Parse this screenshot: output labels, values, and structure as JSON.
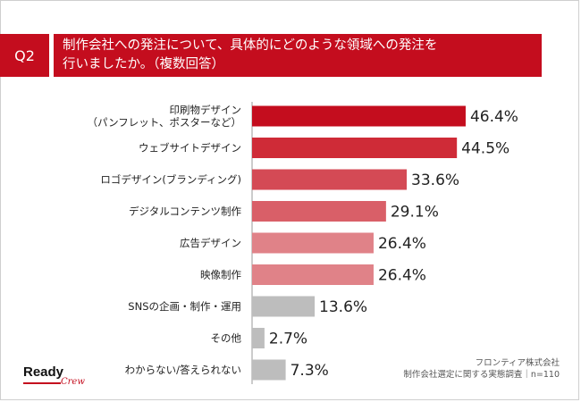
{
  "question": {
    "badge": "Q2",
    "line1": "制作会社への発注について、具体的にどのような領域への発注を",
    "line2": "行いましたか。（複数回答）"
  },
  "chart_data": {
    "type": "bar",
    "orientation": "horizontal",
    "unit": "%",
    "categories": [
      [
        "印刷物デザイン",
        "（パンフレット、ポスターなど）"
      ],
      [
        "ウェブサイトデザイン"
      ],
      [
        "ロゴデザイン(ブランディング)"
      ],
      [
        "デジタルコンテンツ制作"
      ],
      [
        "広告デザイン"
      ],
      [
        "映像制作"
      ],
      [
        "SNSの企画・制作・運用"
      ],
      [
        "その他"
      ],
      [
        "わからない/答えられない"
      ]
    ],
    "values": [
      46.4,
      44.5,
      33.6,
      29.1,
      26.4,
      26.4,
      13.6,
      2.7,
      7.3
    ],
    "value_labels": [
      "46.4%",
      "44.5%",
      "33.6%",
      "29.1%",
      "26.4%",
      "26.4%",
      "13.6%",
      "2.7%",
      "7.3%"
    ],
    "colors": [
      "#c40d1e",
      "#cf2b37",
      "#d44a55",
      "#d95f68",
      "#e08288",
      "#e08288",
      "#bdbdbd",
      "#bdbdbd",
      "#bdbdbd"
    ],
    "xlim": [
      0,
      55
    ],
    "grid": false,
    "legend": "none"
  },
  "source": {
    "line1": "フロンティア株式会社",
    "line2": "制作会社選定に関する実態調査｜n=110"
  },
  "logo": {
    "main": "Ready",
    "script": "Crew"
  },
  "accent_color": "#c40d1e"
}
